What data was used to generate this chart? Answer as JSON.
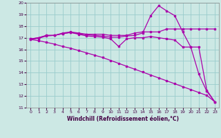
{
  "xlabel": "Windchill (Refroidissement éolien,°C)",
  "bg_color": "#cce8e4",
  "grid_color": "#99cccc",
  "xlim": [
    -0.5,
    23.5
  ],
  "ylim": [
    11,
    20
  ],
  "yticks": [
    11,
    12,
    13,
    14,
    15,
    16,
    17,
    18,
    19,
    20
  ],
  "xticks": [
    0,
    1,
    2,
    3,
    4,
    5,
    6,
    7,
    8,
    9,
    10,
    11,
    12,
    13,
    14,
    15,
    16,
    17,
    18,
    19,
    20,
    21,
    22,
    23
  ],
  "line_color": "#aa00aa",
  "series1_x": [
    0,
    1,
    2,
    3,
    4,
    5,
    6,
    7,
    8,
    9,
    10,
    11,
    12,
    13,
    14,
    15,
    16,
    17,
    18,
    19,
    20,
    21,
    22,
    23
  ],
  "series1_y": [
    16.85,
    16.75,
    16.6,
    16.45,
    16.25,
    16.1,
    15.9,
    15.7,
    15.5,
    15.3,
    15.05,
    14.8,
    14.55,
    14.3,
    14.05,
    13.8,
    13.55,
    13.3,
    13.05,
    12.8,
    12.55,
    12.3,
    12.05,
    11.5
  ],
  "series2_x": [
    0,
    1,
    2,
    3,
    4,
    5,
    6,
    7,
    8,
    9,
    10,
    11,
    12,
    13,
    14,
    15,
    16,
    17,
    18,
    19,
    20,
    21,
    22,
    23
  ],
  "series2_y": [
    16.9,
    17.0,
    17.2,
    17.2,
    17.35,
    17.45,
    17.3,
    17.15,
    17.1,
    17.05,
    16.9,
    16.25,
    16.9,
    17.0,
    17.0,
    17.1,
    17.0,
    16.9,
    16.8,
    16.2,
    16.2,
    13.9,
    12.4,
    11.5
  ],
  "series3_x": [
    0,
    1,
    2,
    3,
    4,
    5,
    6,
    7,
    8,
    9,
    10,
    11,
    12,
    13,
    14,
    15,
    16,
    17,
    18,
    19,
    20,
    21,
    22,
    23
  ],
  "series3_y": [
    16.9,
    17.0,
    17.2,
    17.2,
    17.4,
    17.5,
    17.4,
    17.3,
    17.3,
    17.3,
    17.2,
    17.2,
    17.2,
    17.4,
    17.5,
    17.5,
    17.5,
    17.75,
    17.75,
    17.75,
    17.75,
    17.75,
    17.75,
    17.75
  ],
  "series4_x": [
    0,
    1,
    2,
    3,
    4,
    5,
    6,
    7,
    8,
    9,
    10,
    11,
    12,
    13,
    14,
    15,
    16,
    17,
    18,
    19,
    20,
    21,
    22,
    23
  ],
  "series4_y": [
    16.85,
    16.95,
    17.15,
    17.2,
    17.35,
    17.45,
    17.35,
    17.25,
    17.2,
    17.15,
    17.05,
    17.05,
    17.15,
    17.2,
    17.4,
    18.9,
    19.75,
    19.3,
    18.9,
    17.5,
    16.2,
    16.2,
    12.5,
    11.5
  ]
}
